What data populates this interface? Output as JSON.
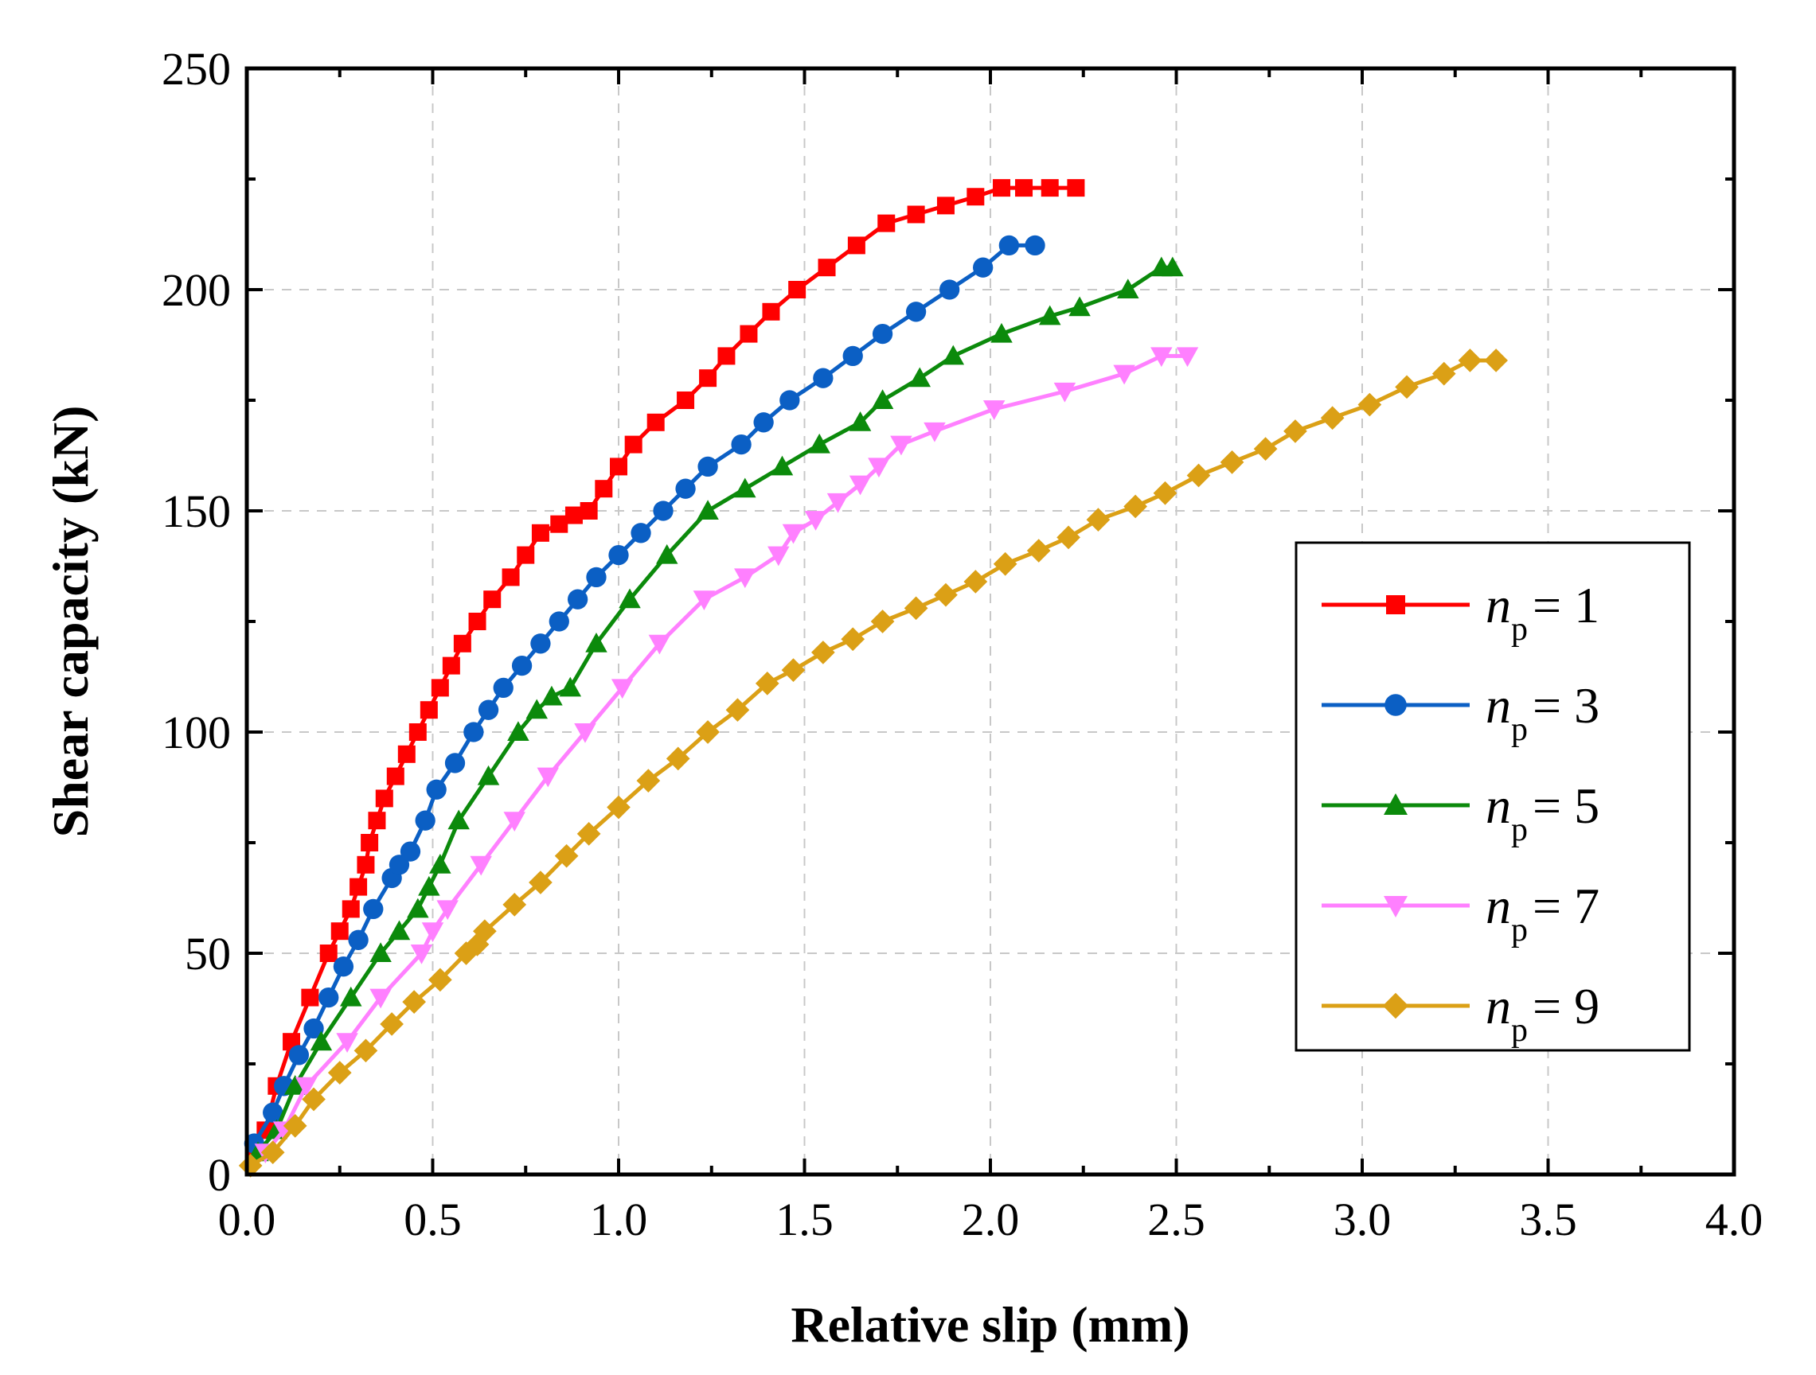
{
  "chart_data": {
    "type": "line",
    "title": "",
    "xlabel": "Relative slip (mm)",
    "ylabel": "Shear capacity (kN)",
    "xlim": [
      0,
      4.0
    ],
    "ylim": [
      0,
      250
    ],
    "xticks": [
      "0.0",
      "0.5",
      "1.0",
      "1.5",
      "2.0",
      "2.5",
      "3.0",
      "3.5",
      "4.0"
    ],
    "yticks": [
      "0",
      "50",
      "100",
      "150",
      "200",
      "250"
    ],
    "grid": true,
    "legend_position": "center-right",
    "series": [
      {
        "name": "n_p = 1",
        "legend_var": "n",
        "legend_sub": "p",
        "legend_rest": "= 1",
        "color": "#ff0000",
        "marker": "square",
        "x": [
          0.02,
          0.05,
          0.08,
          0.12,
          0.17,
          0.22,
          0.25,
          0.28,
          0.3,
          0.32,
          0.33,
          0.35,
          0.37,
          0.4,
          0.43,
          0.46,
          0.49,
          0.52,
          0.55,
          0.58,
          0.62,
          0.66,
          0.71,
          0.75,
          0.79,
          0.84,
          0.88,
          0.92,
          0.96,
          1.0,
          1.04,
          1.1,
          1.18,
          1.24,
          1.29,
          1.35,
          1.41,
          1.48,
          1.56,
          1.64,
          1.72,
          1.8,
          1.88,
          1.96,
          2.03,
          2.09,
          2.16,
          2.23
        ],
        "y": [
          5,
          10,
          20,
          30,
          40,
          50,
          55,
          60,
          65,
          70,
          75,
          80,
          85,
          90,
          95,
          100,
          105,
          110,
          115,
          120,
          125,
          130,
          135,
          140,
          145,
          147,
          149,
          150,
          155,
          160,
          165,
          170,
          175,
          180,
          185,
          190,
          195,
          200,
          205,
          210,
          215,
          217,
          219,
          221,
          223,
          223,
          223,
          223
        ]
      },
      {
        "name": "n_p = 3",
        "legend_var": "n",
        "legend_sub": "p",
        "legend_rest": "= 3",
        "color": "#0b5fc4",
        "marker": "circle",
        "x": [
          0.02,
          0.07,
          0.1,
          0.14,
          0.18,
          0.22,
          0.26,
          0.3,
          0.34,
          0.39,
          0.41,
          0.44,
          0.48,
          0.51,
          0.56,
          0.61,
          0.65,
          0.69,
          0.74,
          0.79,
          0.84,
          0.89,
          0.94,
          1.0,
          1.06,
          1.12,
          1.18,
          1.24,
          1.33,
          1.39,
          1.46,
          1.55,
          1.63,
          1.71,
          1.8,
          1.89,
          1.98,
          2.05,
          2.12
        ],
        "y": [
          7,
          14,
          20,
          27,
          33,
          40,
          47,
          53,
          60,
          67,
          70,
          73,
          80,
          87,
          93,
          100,
          105,
          110,
          115,
          120,
          125,
          130,
          135,
          140,
          145,
          150,
          155,
          160,
          165,
          170,
          175,
          180,
          185,
          190,
          195,
          200,
          205,
          210,
          210
        ]
      },
      {
        "name": "n_p = 5",
        "legend_var": "n",
        "legend_sub": "p",
        "legend_rest": "= 5",
        "color": "#0b8a0b",
        "marker": "triangle-up",
        "x": [
          0.03,
          0.08,
          0.13,
          0.2,
          0.28,
          0.36,
          0.41,
          0.46,
          0.49,
          0.52,
          0.57,
          0.65,
          0.73,
          0.78,
          0.82,
          0.87,
          0.94,
          1.03,
          1.13,
          1.24,
          1.34,
          1.44,
          1.54,
          1.65,
          1.71,
          1.81,
          1.9,
          2.03,
          2.16,
          2.24,
          2.37,
          2.46,
          2.49
        ],
        "y": [
          5,
          10,
          20,
          30,
          40,
          50,
          55,
          60,
          65,
          70,
          80,
          90,
          100,
          105,
          108,
          110,
          120,
          130,
          140,
          150,
          155,
          160,
          165,
          170,
          175,
          180,
          185,
          190,
          194,
          196,
          200,
          205,
          205
        ]
      },
      {
        "name": "n_p = 7",
        "legend_var": "n",
        "legend_sub": "p",
        "legend_rest": "= 7",
        "color": "#ff80ff",
        "marker": "triangle-down",
        "x": [
          0.05,
          0.1,
          0.16,
          0.27,
          0.36,
          0.47,
          0.5,
          0.54,
          0.63,
          0.72,
          0.81,
          0.91,
          1.01,
          1.11,
          1.23,
          1.34,
          1.43,
          1.47,
          1.53,
          1.59,
          1.65,
          1.7,
          1.76,
          1.85,
          2.01,
          2.2,
          2.36,
          2.46,
          2.53
        ],
        "y": [
          5,
          10,
          20,
          30,
          40,
          50,
          55,
          60,
          70,
          80,
          90,
          100,
          110,
          120,
          130,
          135,
          140,
          145,
          148,
          152,
          156,
          160,
          165,
          168,
          173,
          177,
          181,
          185,
          185
        ]
      },
      {
        "name": "n_p = 9",
        "legend_var": "n",
        "legend_sub": "p",
        "legend_rest": "= 9",
        "color": "#dba016",
        "marker": "diamond",
        "x": [
          0.01,
          0.07,
          0.13,
          0.18,
          0.25,
          0.32,
          0.39,
          0.45,
          0.52,
          0.59,
          0.62,
          0.64,
          0.72,
          0.79,
          0.86,
          0.92,
          1.0,
          1.08,
          1.16,
          1.24,
          1.32,
          1.4,
          1.47,
          1.55,
          1.63,
          1.71,
          1.8,
          1.88,
          1.96,
          2.04,
          2.13,
          2.21,
          2.29,
          2.39,
          2.47,
          2.56,
          2.65,
          2.74,
          2.82,
          2.92,
          3.02,
          3.12,
          3.22,
          3.29,
          3.36
        ],
        "y": [
          2,
          5,
          11,
          17,
          23,
          28,
          34,
          39,
          44,
          50,
          52,
          55,
          61,
          66,
          72,
          77,
          83,
          89,
          94,
          100,
          105,
          111,
          114,
          118,
          121,
          125,
          128,
          131,
          134,
          138,
          141,
          144,
          148,
          151,
          154,
          158,
          161,
          164,
          168,
          171,
          174,
          178,
          181,
          184,
          184
        ]
      }
    ]
  }
}
